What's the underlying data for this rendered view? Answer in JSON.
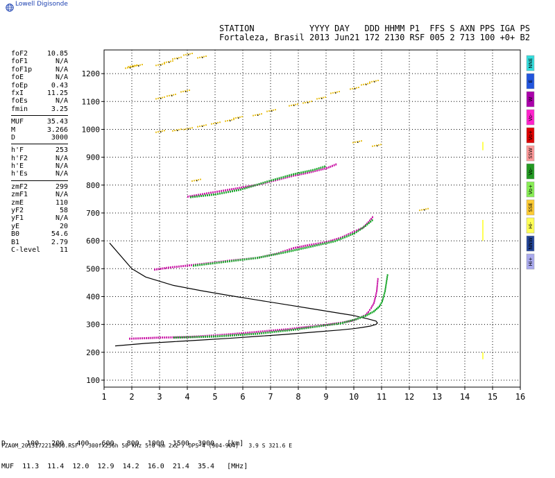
{
  "app": {
    "logo_text": "Lowell Digisonde",
    "logo_icon": "globe-icon"
  },
  "header": {
    "labels": "STATION           YYYY DAY   DDD HHMM P1  FFS S AXN PPS IGA PS",
    "values": "Fortaleza, Brasil 2013 Jun21 172 2130 RSF 005 2 713 100 +0+ B2"
  },
  "params": {
    "group1": [
      {
        "k": "foF2",
        "v": "10.85"
      },
      {
        "k": "foF1",
        "v": "N/A"
      },
      {
        "k": "foF1p",
        "v": "N/A"
      },
      {
        "k": "foE",
        "v": "N/A"
      },
      {
        "k": "foEp",
        "v": "0.43"
      },
      {
        "k": "fxI",
        "v": "11.25"
      },
      {
        "k": "foEs",
        "v": "N/A"
      },
      {
        "k": "fmin",
        "v": "3.25"
      }
    ],
    "group2": [
      {
        "k": "MUF",
        "v": "35.43"
      },
      {
        "k": "M",
        "v": "3.266"
      },
      {
        "k": "D",
        "v": "3000"
      }
    ],
    "group3": [
      {
        "k": "h'F",
        "v": "253"
      },
      {
        "k": "h'F2",
        "v": "N/A"
      },
      {
        "k": "h'E",
        "v": "N/A"
      },
      {
        "k": "h'Es",
        "v": "N/A"
      }
    ],
    "group4": [
      {
        "k": "zmF2",
        "v": "299"
      },
      {
        "k": "zmF1",
        "v": "N/A"
      },
      {
        "k": "zmE",
        "v": "110"
      },
      {
        "k": "yF2",
        "v": "58"
      },
      {
        "k": "yF1",
        "v": "N/A"
      },
      {
        "k": "yE",
        "v": "20"
      },
      {
        "k": "B0",
        "v": "54.6"
      },
      {
        "k": "B1",
        "v": "2.79"
      },
      {
        "k": "C-level",
        "v": "11"
      }
    ]
  },
  "legend": [
    {
      "label": "NNE",
      "color": "#33dddd"
    },
    {
      "label": "E",
      "color": "#2255dd"
    },
    {
      "label": "W",
      "color": "#aa00aa"
    },
    {
      "label": "Vo-",
      "color": "#ff22cc"
    },
    {
      "label": "Vo+",
      "color": "#dd0000"
    },
    {
      "label": "SSW",
      "color": "#ff9999"
    },
    {
      "label": "Vo-",
      "color": "#229922"
    },
    {
      "label": "Vo+",
      "color": "#88ee55"
    },
    {
      "label": "SSE",
      "color": "#ffcc33"
    },
    {
      "label": "Hi-",
      "color": "#ffff55"
    },
    {
      "label": "NNW",
      "color": "#224499"
    },
    {
      "label": "Hi+",
      "color": "#aaaaee"
    }
  ],
  "footer": {
    "line1": "D     100   200   400   600   800  1000  1500  3000   [km]",
    "line2": "MUF  11.3  11.4  12.0  12.9  14.2  16.0  21.4  35.4   [MHz]",
    "file_line": "FZA0M_2013172213000.RSF / 300fx256h 50 kHz 5.0 km 2x2 / DPS-4 (904-904)   3.9 S 321.6 E"
  },
  "chart_data": {
    "type": "scatter",
    "xlim": [
      1,
      16
    ],
    "ylim": [
      75,
      1285
    ],
    "xticks": [
      "1",
      "2",
      "3",
      "4",
      "5",
      "6",
      "7",
      "8",
      "9",
      "10",
      "11",
      "12",
      "13",
      "14",
      "15",
      "16"
    ],
    "yticks": [
      "100",
      "200",
      "300",
      "400",
      "500",
      "600",
      "700",
      "800",
      "900",
      "1000",
      "1100",
      "1200"
    ],
    "grid": true,
    "profile": {
      "color": "#000000",
      "x": [
        1.4,
        2.5,
        3.5,
        4.5,
        5.5,
        6.5,
        7.5,
        8.5,
        9.5,
        10.0,
        10.3,
        10.6,
        10.8,
        10.85,
        10.8,
        10.5,
        10.2,
        10.0,
        9.5,
        8.5,
        7.5,
        6.5,
        5.5,
        4.5,
        3.5,
        2.5,
        2.0,
        1.2
      ],
      "y": [
        223,
        232,
        238,
        244,
        250,
        257,
        264,
        272,
        280,
        285,
        289,
        294,
        300,
        305,
        312,
        320,
        327,
        332,
        340,
        356,
        372,
        388,
        404,
        421,
        440,
        470,
        500,
        592
      ]
    },
    "traces": [
      {
        "name": "F1 o",
        "color": "#cc22aa",
        "x": [
          1.9,
          2.5,
          3.0,
          4.0,
          5.0,
          6.0,
          7.0,
          7.6,
          8.0,
          8.5,
          9.0,
          9.5,
          9.9,
          10.2,
          10.4,
          10.5,
          10.6,
          10.7,
          10.75,
          10.8,
          10.82,
          10.85
        ],
        "y": [
          250,
          252,
          254,
          256,
          262,
          270,
          279,
          284,
          289,
          294,
          300,
          307,
          314,
          325,
          335,
          346,
          360,
          378,
          398,
          420,
          440,
          472
        ]
      },
      {
        "name": "F1 x",
        "color": "#22aa33",
        "x": [
          3.5,
          5.0,
          6.5,
          7.8,
          8.8,
          9.5,
          10.0,
          10.4,
          10.7,
          10.9,
          11.0,
          11.1,
          11.2
        ],
        "y": [
          254,
          258,
          268,
          282,
          296,
          305,
          318,
          332,
          348,
          366,
          384,
          420,
          485
        ]
      },
      {
        "name": "F2 o",
        "color": "#cc22aa",
        "x": [
          2.8,
          3.3,
          4.5,
          5.5,
          6.5,
          7.2,
          7.8,
          8.3,
          9.0,
          9.5,
          10.0,
          10.3,
          10.5,
          10.7
        ],
        "y": [
          498,
          505,
          518,
          530,
          540,
          555,
          575,
          585,
          597,
          612,
          635,
          648,
          668,
          692
        ]
      },
      {
        "name": "F2 x",
        "color": "#22aa33",
        "x": [
          4.2,
          5.5,
          6.5,
          7.5,
          8.5,
          9.3,
          10.0,
          10.4,
          10.7
        ],
        "y": [
          512,
          528,
          540,
          560,
          582,
          600,
          628,
          655,
          680
        ]
      },
      {
        "name": "F3 o",
        "color": "#cc22aa",
        "x": [
          4.0,
          4.6,
          5.5,
          6.5,
          7.8,
          8.3,
          9.0,
          9.4
        ],
        "y": [
          760,
          770,
          785,
          802,
          835,
          845,
          862,
          878
        ]
      },
      {
        "name": "F3 x",
        "color": "#22aa33",
        "x": [
          4.1,
          5.0,
          5.9,
          7.0,
          7.8,
          8.5,
          9.0
        ],
        "y": [
          758,
          768,
          785,
          818,
          840,
          855,
          870
        ]
      },
      {
        "name": "Multi-hop",
        "color": "#e8c020",
        "x": [
          1.9,
          2.0,
          2.2,
          3.0,
          3.3,
          3.6,
          3.0,
          3.4,
          3.9,
          3.0,
          3.6,
          4.0,
          4.5,
          5.0,
          5.5,
          5.8,
          6.5,
          7.0,
          7.8,
          8.3,
          8.8,
          9.3,
          10.0,
          10.4,
          10.7,
          10.8,
          10.1,
          4.5,
          4.0,
          4.3,
          12.5
        ],
        "y": [
          1225,
          1230,
          1232,
          1235,
          1245,
          1258,
          1115,
          1125,
          1140,
          995,
          1000,
          1005,
          1015,
          1025,
          1035,
          1045,
          1055,
          1070,
          1090,
          1100,
          1115,
          1135,
          1150,
          1165,
          1175,
          945,
          958,
          1262,
          1272,
          820,
          715
        ]
      },
      {
        "name": "Noise",
        "color": "#ffff55",
        "x": [
          14.65,
          14.65,
          14.65
        ],
        "y": [
          [
            200,
            175
          ],
          [
            675,
            600
          ],
          [
            955,
            925
          ]
        ]
      }
    ]
  }
}
